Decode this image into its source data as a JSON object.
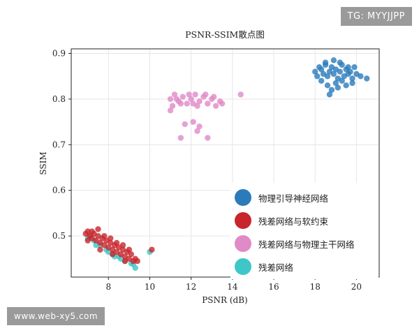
{
  "watermark_top": "TG: MYYJJPP",
  "watermark_bottom": "www.web-xy5.com",
  "chart_data": {
    "type": "scatter",
    "title": "PSNR-SSIM散点图",
    "xlabel": "PSNR (dB)",
    "ylabel": "SSIM",
    "xlim": [
      6.2,
      21.1
    ],
    "ylim": [
      0.41,
      0.91
    ],
    "xticks": [
      8,
      10,
      12,
      14,
      16,
      18,
      20
    ],
    "yticks": [
      0.5,
      0.6,
      0.7,
      0.8,
      0.9
    ],
    "grid": true,
    "legend_position": "lower-right",
    "series": [
      {
        "name": "物理引导神经网络",
        "color": "#2b7bba",
        "points": [
          [
            18,
            0.86
          ],
          [
            18.2,
            0.87
          ],
          [
            18.3,
            0.865
          ],
          [
            18.4,
            0.855
          ],
          [
            18.5,
            0.875
          ],
          [
            18.6,
            0.85
          ],
          [
            18.7,
            0.86
          ],
          [
            18.8,
            0.87
          ],
          [
            18.9,
            0.855
          ],
          [
            19,
            0.865
          ],
          [
            19.1,
            0.845
          ],
          [
            19.2,
            0.86
          ],
          [
            19.3,
            0.875
          ],
          [
            19.4,
            0.85
          ],
          [
            19.5,
            0.865
          ],
          [
            19.6,
            0.855
          ],
          [
            19.7,
            0.86
          ],
          [
            19.8,
            0.845
          ],
          [
            19.9,
            0.87
          ],
          [
            20,
            0.855
          ],
          [
            18.3,
            0.84
          ],
          [
            18.6,
            0.83
          ],
          [
            18.8,
            0.82
          ],
          [
            18.7,
            0.81
          ],
          [
            19,
            0.835
          ],
          [
            19.3,
            0.84
          ],
          [
            19.5,
            0.83
          ],
          [
            19.8,
            0.835
          ],
          [
            20.2,
            0.85
          ],
          [
            20.5,
            0.845
          ],
          [
            18.5,
            0.88
          ],
          [
            18.9,
            0.885
          ],
          [
            19.2,
            0.88
          ],
          [
            18.1,
            0.85
          ],
          [
            19.6,
            0.87
          ],
          [
            19.1,
            0.825
          ]
        ]
      },
      {
        "name": "残差网络与软约束",
        "color": "#c8262c",
        "points": [
          [
            6.9,
            0.505
          ],
          [
            7,
            0.51
          ],
          [
            7.1,
            0.5
          ],
          [
            7.2,
            0.495
          ],
          [
            7.3,
            0.505
          ],
          [
            7.4,
            0.49
          ],
          [
            7.5,
            0.5
          ],
          [
            7.6,
            0.485
          ],
          [
            7.7,
            0.495
          ],
          [
            7.8,
            0.48
          ],
          [
            7.9,
            0.49
          ],
          [
            8,
            0.475
          ],
          [
            8.1,
            0.485
          ],
          [
            8.2,
            0.47
          ],
          [
            8.3,
            0.48
          ],
          [
            8.4,
            0.465
          ],
          [
            8.5,
            0.475
          ],
          [
            8.6,
            0.46
          ],
          [
            8.7,
            0.47
          ],
          [
            8.8,
            0.455
          ],
          [
            8.9,
            0.465
          ],
          [
            9,
            0.45
          ],
          [
            9.1,
            0.46
          ],
          [
            9.2,
            0.445
          ],
          [
            9.3,
            0.45
          ],
          [
            7.2,
            0.51
          ],
          [
            7.5,
            0.515
          ],
          [
            7.8,
            0.5
          ],
          [
            8.1,
            0.495
          ],
          [
            8.4,
            0.485
          ],
          [
            8.7,
            0.48
          ],
          [
            9,
            0.47
          ],
          [
            9.4,
            0.445
          ],
          [
            10.1,
            0.47
          ],
          [
            7,
            0.49
          ],
          [
            7.6,
            0.47
          ],
          [
            8.2,
            0.46
          ],
          [
            8.8,
            0.445
          ]
        ]
      },
      {
        "name": "残差网络与物理主干网络",
        "color": "#e08ac8",
        "points": [
          [
            11,
            0.8
          ],
          [
            11.2,
            0.81
          ],
          [
            11.4,
            0.795
          ],
          [
            11.6,
            0.805
          ],
          [
            11.8,
            0.79
          ],
          [
            12,
            0.8
          ],
          [
            12.2,
            0.81
          ],
          [
            12.4,
            0.795
          ],
          [
            12.6,
            0.805
          ],
          [
            12.8,
            0.79
          ],
          [
            13,
            0.8
          ],
          [
            13.2,
            0.785
          ],
          [
            13.4,
            0.795
          ],
          [
            11.1,
            0.785
          ],
          [
            11.5,
            0.79
          ],
          [
            11.9,
            0.81
          ],
          [
            12.3,
            0.785
          ],
          [
            12.7,
            0.81
          ],
          [
            13.1,
            0.805
          ],
          [
            13.5,
            0.79
          ],
          [
            11,
            0.775
          ],
          [
            11.3,
            0.8
          ],
          [
            12.1,
            0.79
          ],
          [
            14.4,
            0.81
          ],
          [
            11.7,
            0.745
          ],
          [
            11.5,
            0.715
          ],
          [
            12.1,
            0.75
          ],
          [
            12.4,
            0.74
          ],
          [
            12.8,
            0.715
          ],
          [
            12.3,
            0.73
          ]
        ]
      },
      {
        "name": "残差网络",
        "color": "#3ec7c6",
        "points": [
          [
            7,
            0.495
          ],
          [
            7.3,
            0.49
          ],
          [
            7.6,
            0.48
          ],
          [
            7.9,
            0.47
          ],
          [
            8.2,
            0.46
          ],
          [
            8.5,
            0.455
          ],
          [
            8.8,
            0.445
          ],
          [
            9.1,
            0.44
          ],
          [
            9.3,
            0.43
          ],
          [
            10,
            0.465
          ],
          [
            7.4,
            0.48
          ],
          [
            8,
            0.465
          ],
          [
            8.6,
            0.45
          ],
          [
            9.2,
            0.438
          ],
          [
            7.1,
            0.5
          ],
          [
            8.3,
            0.455
          ]
        ]
      }
    ]
  }
}
